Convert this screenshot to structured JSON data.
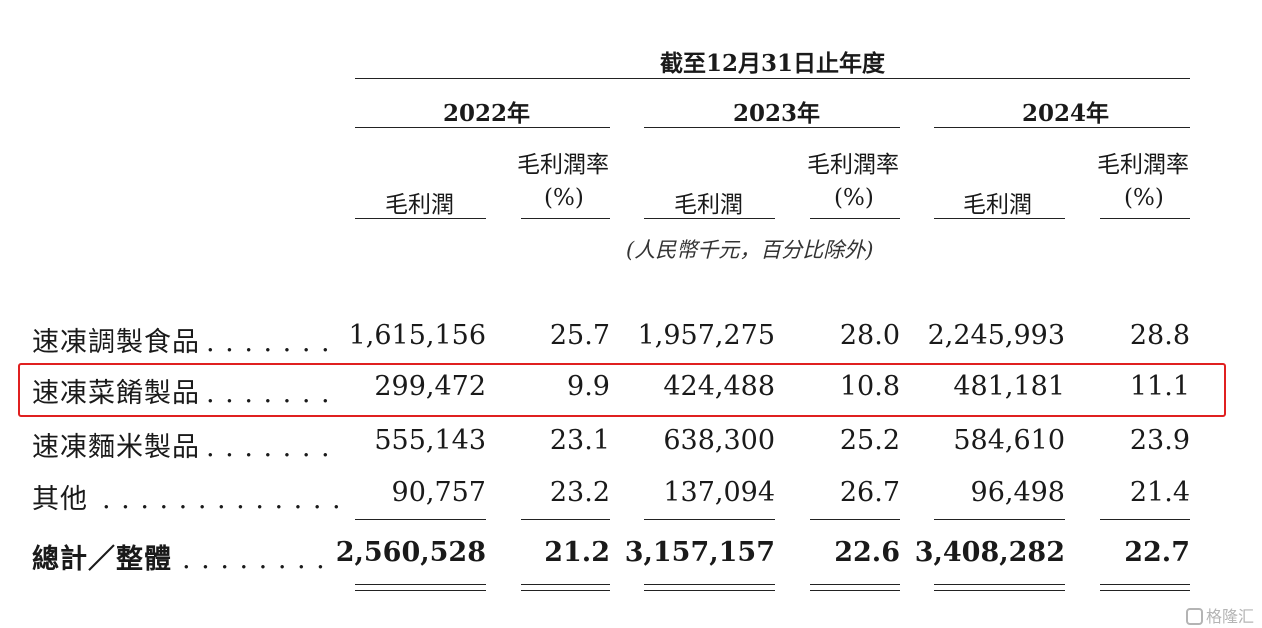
{
  "header": {
    "period_title": "截至12月31日止年度",
    "years": [
      "2022年",
      "2023年",
      "2024年"
    ],
    "col_gross_profit": "毛利潤",
    "col_margin_line1": "毛利潤率",
    "col_margin_line2": "(%)",
    "unit_note": "(人民幣千元，百分比除外)"
  },
  "rows": [
    {
      "label": "速凍調製食品",
      "dots": ". . . . . . .",
      "values": [
        "1,615,156",
        "25.7",
        "1,957,275",
        "28.0",
        "2,245,993",
        "28.8"
      ]
    },
    {
      "label": "速凍菜餚製品",
      "dots": ". . . . . . .",
      "values": [
        "299,472",
        "9.9",
        "424,488",
        "10.8",
        "481,181",
        "11.1"
      ]
    },
    {
      "label": "速凍麵米製品",
      "dots": ". . . . . . .",
      "values": [
        "555,143",
        "23.1",
        "638,300",
        "25.2",
        "584,610",
        "23.9"
      ]
    },
    {
      "label": "其他",
      "dots": ". . . . . . . . . . . . .",
      "values": [
        "90,757",
        "23.2",
        "137,094",
        "26.7",
        "96,498",
        "21.4"
      ]
    }
  ],
  "total": {
    "label": "總計／整體",
    "dots": ". . . . . . . .",
    "values": [
      "2,560,528",
      "21.2",
      "3,157,157",
      "22.6",
      "3,408,282",
      "22.7"
    ]
  },
  "watermark": "格隆汇",
  "colors": {
    "highlight": "#e02020",
    "text": "#1a1a1a",
    "rule": "#222222"
  }
}
